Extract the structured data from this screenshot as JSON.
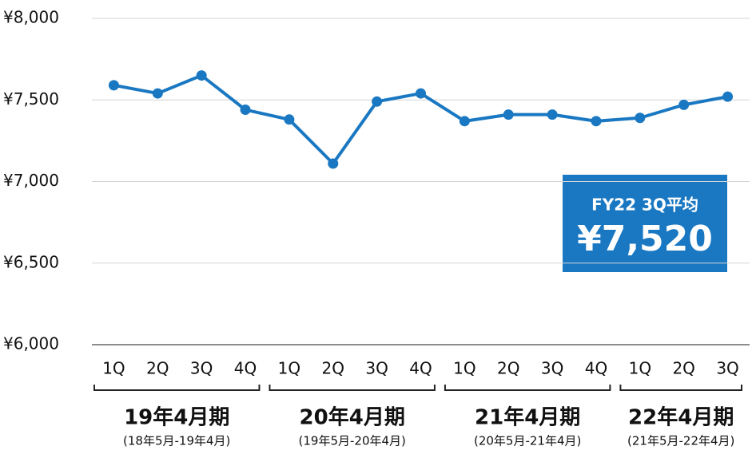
{
  "chart_data": {
    "type": "line",
    "groups": [
      {
        "label": "19年4月期",
        "sublabel": "(18年5月-19年4月)",
        "categories": [
          "1Q",
          "2Q",
          "3Q",
          "4Q"
        ]
      },
      {
        "label": "20年4月期",
        "sublabel": "(19年5月-20年4月)",
        "categories": [
          "1Q",
          "2Q",
          "3Q",
          "4Q"
        ]
      },
      {
        "label": "21年4月期",
        "sublabel": "(20年5月-21年4月)",
        "categories": [
          "1Q",
          "2Q",
          "3Q",
          "4Q"
        ]
      },
      {
        "label": "22年4月期",
        "sublabel": "(21年5月-22年4月)",
        "categories": [
          "1Q",
          "2Q",
          "3Q"
        ]
      }
    ],
    "series": [
      {
        "color": "#1a78c2",
        "values": [
          7590,
          7540,
          7650,
          7440,
          7380,
          7110,
          7490,
          7540,
          7370,
          7410,
          7410,
          7370,
          7390,
          7470,
          7520
        ]
      }
    ],
    "ylim": [
      6000,
      8000
    ],
    "yticks": [
      {
        "value": 6000,
        "label": "¥6,000"
      },
      {
        "value": 6500,
        "label": "¥6,500"
      },
      {
        "value": 7000,
        "label": "¥7,000"
      },
      {
        "value": 7500,
        "label": "¥7,500"
      },
      {
        "value": 8000,
        "label": "¥8,000"
      }
    ],
    "grid": true,
    "annotation": {
      "title": "FY22 3Q平均",
      "text": "¥7,520"
    }
  }
}
